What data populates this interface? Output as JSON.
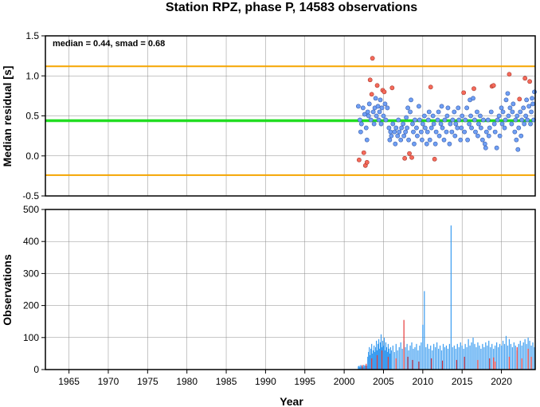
{
  "chart_data": [
    {
      "type": "scatter",
      "title": "Station RPZ, phase P, 14583 observations",
      "xlabel": "",
      "ylabel": "Median residual [s]",
      "stats_text": "median = 0.44, smad = 0.68",
      "xlim": [
        1962,
        2024.3
      ],
      "ylim": [
        -0.5,
        1.5
      ],
      "yticks": [
        -0.5,
        0.0,
        0.5,
        1.0,
        1.5
      ],
      "ytick_labels": [
        "-0.5",
        "0.0",
        "0.5",
        "1.0",
        "1.5"
      ],
      "median_line": 0.44,
      "bounds": [
        -0.24,
        1.12
      ],
      "colors": {
        "median": "#22dd22",
        "bounds": "#f5a500",
        "inlier": "#6f9ff5",
        "outlier": "#f56a5a"
      },
      "outliers": [
        [
          2001.9,
          -0.05
        ],
        [
          2002.5,
          0.04
        ],
        [
          2002.7,
          -0.12
        ],
        [
          2002.9,
          -0.08
        ],
        [
          2003.3,
          0.95
        ],
        [
          2003.6,
          1.22
        ],
        [
          2003.5,
          0.77
        ],
        [
          2004.2,
          0.88
        ],
        [
          2004.9,
          0.82
        ],
        [
          2005.1,
          0.8
        ],
        [
          2006.1,
          0.85
        ],
        [
          2007.7,
          -0.03
        ],
        [
          2008.3,
          0.03
        ],
        [
          2008.6,
          -0.02
        ],
        [
          2011.0,
          0.86
        ],
        [
          2011.5,
          -0.04
        ],
        [
          2015.2,
          0.79
        ],
        [
          2016.5,
          0.84
        ],
        [
          2018.8,
          0.87
        ],
        [
          2019.0,
          0.88
        ],
        [
          2021.0,
          1.02
        ],
        [
          2022.3,
          0.71
        ],
        [
          2023.0,
          0.97
        ],
        [
          2023.6,
          0.93
        ]
      ],
      "inliers": [
        [
          2001.8,
          0.62
        ],
        [
          2002.0,
          0.45
        ],
        [
          2002.1,
          0.3
        ],
        [
          2002.2,
          0.4
        ],
        [
          2002.4,
          0.6
        ],
        [
          2002.6,
          0.52
        ],
        [
          2002.8,
          0.35
        ],
        [
          2002.9,
          0.2
        ],
        [
          2003.0,
          0.55
        ],
        [
          2003.1,
          0.5
        ],
        [
          2003.2,
          0.65
        ],
        [
          2003.4,
          0.45
        ],
        [
          2003.7,
          0.55
        ],
        [
          2003.8,
          0.4
        ],
        [
          2003.9,
          0.6
        ],
        [
          2004.0,
          0.72
        ],
        [
          2004.1,
          0.5
        ],
        [
          2004.3,
          0.62
        ],
        [
          2004.4,
          0.45
        ],
        [
          2004.5,
          0.55
        ],
        [
          2004.6,
          0.7
        ],
        [
          2004.7,
          0.4
        ],
        [
          2004.8,
          0.6
        ],
        [
          2005.0,
          0.5
        ],
        [
          2005.2,
          0.65
        ],
        [
          2005.3,
          0.45
        ],
        [
          2005.5,
          0.6
        ],
        [
          2005.7,
          0.35
        ],
        [
          2005.8,
          0.2
        ],
        [
          2005.9,
          0.3
        ],
        [
          2006.0,
          0.25
        ],
        [
          2006.2,
          0.4
        ],
        [
          2006.4,
          0.3
        ],
        [
          2006.5,
          0.15
        ],
        [
          2006.6,
          0.35
        ],
        [
          2006.8,
          0.25
        ],
        [
          2006.9,
          0.45
        ],
        [
          2007.0,
          0.3
        ],
        [
          2007.2,
          0.2
        ],
        [
          2007.3,
          0.35
        ],
        [
          2007.5,
          0.4
        ],
        [
          2007.6,
          0.25
        ],
        [
          2007.8,
          0.3
        ],
        [
          2007.9,
          0.48
        ],
        [
          2008.0,
          0.35
        ],
        [
          2008.1,
          0.6
        ],
        [
          2008.2,
          0.2
        ],
        [
          2008.4,
          0.55
        ],
        [
          2008.5,
          0.7
        ],
        [
          2008.7,
          0.4
        ],
        [
          2008.8,
          0.3
        ],
        [
          2008.9,
          0.15
        ],
        [
          2009.0,
          0.45
        ],
        [
          2009.2,
          0.35
        ],
        [
          2009.3,
          0.25
        ],
        [
          2009.5,
          0.62
        ],
        [
          2009.6,
          0.45
        ],
        [
          2009.8,
          0.3
        ],
        [
          2009.9,
          0.2
        ],
        [
          2010.0,
          0.4
        ],
        [
          2010.2,
          0.5
        ],
        [
          2010.3,
          0.35
        ],
        [
          2010.5,
          0.15
        ],
        [
          2010.6,
          0.3
        ],
        [
          2010.7,
          0.45
        ],
        [
          2010.8,
          0.55
        ],
        [
          2010.9,
          0.2
        ],
        [
          2011.1,
          0.35
        ],
        [
          2011.3,
          0.5
        ],
        [
          2011.4,
          0.4
        ],
        [
          2011.6,
          0.15
        ],
        [
          2011.7,
          0.3
        ],
        [
          2011.9,
          0.45
        ],
        [
          2012.0,
          0.55
        ],
        [
          2012.1,
          0.25
        ],
        [
          2012.3,
          0.4
        ],
        [
          2012.4,
          0.62
        ],
        [
          2012.5,
          0.35
        ],
        [
          2012.7,
          0.2
        ],
        [
          2012.8,
          0.45
        ],
        [
          2013.0,
          0.3
        ],
        [
          2013.1,
          0.5
        ],
        [
          2013.2,
          0.6
        ],
        [
          2013.4,
          0.15
        ],
        [
          2013.5,
          0.4
        ],
        [
          2013.7,
          0.3
        ],
        [
          2013.8,
          0.45
        ],
        [
          2014.0,
          0.55
        ],
        [
          2014.1,
          0.25
        ],
        [
          2014.2,
          0.4
        ],
        [
          2014.4,
          0.35
        ],
        [
          2014.5,
          0.6
        ],
        [
          2014.6,
          0.45
        ],
        [
          2014.8,
          0.2
        ],
        [
          2014.9,
          0.35
        ],
        [
          2015.0,
          0.5
        ],
        [
          2015.3,
          0.3
        ],
        [
          2015.4,
          0.45
        ],
        [
          2015.6,
          0.6
        ],
        [
          2015.7,
          0.2
        ],
        [
          2015.9,
          0.4
        ],
        [
          2016.0,
          0.7
        ],
        [
          2016.1,
          0.5
        ],
        [
          2016.2,
          0.35
        ],
        [
          2016.4,
          0.72
        ],
        [
          2016.6,
          0.45
        ],
        [
          2016.7,
          0.3
        ],
        [
          2016.9,
          0.55
        ],
        [
          2017.0,
          0.25
        ],
        [
          2017.1,
          0.4
        ],
        [
          2017.3,
          0.5
        ],
        [
          2017.4,
          0.35
        ],
        [
          2017.6,
          0.2
        ],
        [
          2017.7,
          0.45
        ],
        [
          2017.9,
          0.15
        ],
        [
          2018.0,
          0.1
        ],
        [
          2018.1,
          0.3
        ],
        [
          2018.3,
          0.45
        ],
        [
          2018.4,
          0.25
        ],
        [
          2018.5,
          0.35
        ],
        [
          2018.7,
          0.55
        ],
        [
          2019.1,
          0.4
        ],
        [
          2019.2,
          0.3
        ],
        [
          2019.4,
          0.1
        ],
        [
          2019.5,
          0.45
        ],
        [
          2019.7,
          0.5
        ],
        [
          2019.8,
          0.25
        ],
        [
          2020.0,
          0.6
        ],
        [
          2020.1,
          0.4
        ],
        [
          2020.2,
          0.55
        ],
        [
          2020.4,
          0.35
        ],
        [
          2020.5,
          0.45
        ],
        [
          2020.6,
          0.7
        ],
        [
          2020.8,
          0.78
        ],
        [
          2020.9,
          0.5
        ],
        [
          2021.1,
          0.6
        ],
        [
          2021.3,
          0.4
        ],
        [
          2021.4,
          0.55
        ],
        [
          2021.5,
          0.65
        ],
        [
          2021.7,
          0.3
        ],
        [
          2021.8,
          0.45
        ],
        [
          2021.9,
          0.2
        ],
        [
          2022.0,
          0.5
        ],
        [
          2022.1,
          0.08
        ],
        [
          2022.2,
          0.35
        ],
        [
          2022.4,
          0.55
        ],
        [
          2022.5,
          0.25
        ],
        [
          2022.6,
          0.45
        ],
        [
          2022.8,
          0.6
        ],
        [
          2022.9,
          0.4
        ],
        [
          2023.1,
          0.5
        ],
        [
          2023.2,
          0.7
        ],
        [
          2023.3,
          0.45
        ],
        [
          2023.5,
          0.62
        ],
        [
          2023.7,
          0.4
        ],
        [
          2023.8,
          0.55
        ],
        [
          2023.9,
          0.72
        ],
        [
          2024.0,
          0.65
        ],
        [
          2024.1,
          0.45
        ],
        [
          2024.2,
          0.8
        ]
      ]
    },
    {
      "type": "bar",
      "xlabel": "Year",
      "ylabel": "Observations",
      "xlim": [
        1962,
        2024.3
      ],
      "ylim": [
        0,
        500
      ],
      "xticks": [
        1965,
        1970,
        1975,
        1980,
        1985,
        1990,
        1995,
        2000,
        2005,
        2010,
        2015,
        2020
      ],
      "xtick_labels": [
        "1965",
        "1970",
        "1975",
        "1980",
        "1985",
        "1990",
        "1995",
        "2000",
        "2005",
        "2010",
        "2015",
        "2020"
      ],
      "yticks": [
        0,
        100,
        200,
        300,
        400,
        500
      ],
      "ytick_labels": [
        "0",
        "100",
        "200",
        "300",
        "400",
        "500"
      ],
      "colors": {
        "normal": "#3a9cf0",
        "flagged": "#e83a3a"
      },
      "bars": [
        [
          2001.8,
          10
        ],
        [
          2001.9,
          12
        ],
        [
          2002.0,
          8
        ],
        [
          2002.1,
          14
        ],
        [
          2002.2,
          10
        ],
        [
          2002.3,
          12
        ],
        [
          2002.4,
          9
        ],
        [
          2002.5,
          15
        ],
        [
          2002.6,
          11
        ],
        [
          2002.7,
          13
        ],
        [
          2002.8,
          10
        ],
        [
          2002.9,
          12
        ],
        [
          2003.0,
          40
        ],
        [
          2003.1,
          55
        ],
        [
          2003.2,
          70
        ],
        [
          2003.3,
          45
        ],
        [
          2003.4,
          65
        ],
        [
          2003.5,
          80
        ],
        [
          2003.6,
          50
        ],
        [
          2003.7,
          60
        ],
        [
          2003.8,
          75
        ],
        [
          2003.9,
          55
        ],
        [
          2004.0,
          70
        ],
        [
          2004.1,
          90
        ],
        [
          2004.2,
          60
        ],
        [
          2004.3,
          80
        ],
        [
          2004.4,
          95
        ],
        [
          2004.5,
          65
        ],
        [
          2004.6,
          85
        ],
        [
          2004.7,
          110
        ],
        [
          2004.8,
          70
        ],
        [
          2004.9,
          90
        ],
        [
          2005.0,
          75
        ],
        [
          2005.1,
          100
        ],
        [
          2005.2,
          60
        ],
        [
          2005.3,
          85
        ],
        [
          2005.4,
          70
        ],
        [
          2005.5,
          55
        ],
        [
          2005.6,
          80
        ],
        [
          2005.7,
          65
        ],
        [
          2005.8,
          50
        ],
        [
          2005.9,
          70
        ],
        [
          2006.0,
          60
        ],
        [
          2006.2,
          75
        ],
        [
          2006.4,
          55
        ],
        [
          2006.6,
          80
        ],
        [
          2006.8,
          60
        ],
        [
          2007.0,
          70
        ],
        [
          2007.2,
          85
        ],
        [
          2007.4,
          65
        ],
        [
          2007.6,
          90
        ],
        [
          2007.8,
          70
        ],
        [
          2008.0,
          80
        ],
        [
          2008.2,
          60
        ],
        [
          2008.4,
          75
        ],
        [
          2008.6,
          85
        ],
        [
          2008.8,
          65
        ],
        [
          2009.0,
          70
        ],
        [
          2009.2,
          80
        ],
        [
          2009.4,
          60
        ],
        [
          2009.6,
          75
        ],
        [
          2009.8,
          85
        ],
        [
          2010.0,
          140
        ],
        [
          2010.2,
          245
        ],
        [
          2010.4,
          70
        ],
        [
          2010.6,
          80
        ],
        [
          2010.8,
          65
        ],
        [
          2011.0,
          75
        ],
        [
          2011.2,
          60
        ],
        [
          2011.4,
          80
        ],
        [
          2011.6,
          70
        ],
        [
          2011.8,
          85
        ],
        [
          2012.0,
          65
        ],
        [
          2012.2,
          75
        ],
        [
          2012.4,
          60
        ],
        [
          2012.6,
          80
        ],
        [
          2012.8,
          70
        ],
        [
          2013.0,
          75
        ],
        [
          2013.2,
          65
        ],
        [
          2013.4,
          80
        ],
        [
          2013.6,
          450
        ],
        [
          2013.8,
          70
        ],
        [
          2014.0,
          75
        ],
        [
          2014.2,
          65
        ],
        [
          2014.4,
          80
        ],
        [
          2014.6,
          70
        ],
        [
          2014.8,
          85
        ],
        [
          2015.0,
          75
        ],
        [
          2015.2,
          65
        ],
        [
          2015.4,
          80
        ],
        [
          2015.6,
          70
        ],
        [
          2015.8,
          95
        ],
        [
          2016.0,
          75
        ],
        [
          2016.2,
          85
        ],
        [
          2016.4,
          100
        ],
        [
          2016.6,
          80
        ],
        [
          2016.8,
          70
        ],
        [
          2017.0,
          85
        ],
        [
          2017.2,
          75
        ],
        [
          2017.4,
          65
        ],
        [
          2017.6,
          80
        ],
        [
          2017.8,
          70
        ],
        [
          2018.0,
          85
        ],
        [
          2018.2,
          75
        ],
        [
          2018.4,
          90
        ],
        [
          2018.6,
          70
        ],
        [
          2018.8,
          80
        ],
        [
          2019.0,
          65
        ],
        [
          2019.2,
          75
        ],
        [
          2019.4,
          85
        ],
        [
          2019.6,
          70
        ],
        [
          2019.8,
          80
        ],
        [
          2020.0,
          75
        ],
        [
          2020.2,
          90
        ],
        [
          2020.4,
          80
        ],
        [
          2020.6,
          105
        ],
        [
          2020.8,
          75
        ],
        [
          2021.0,
          95
        ],
        [
          2021.2,
          80
        ],
        [
          2021.4,
          70
        ],
        [
          2021.6,
          85
        ],
        [
          2021.8,
          75
        ],
        [
          2022.0,
          60
        ],
        [
          2022.2,
          80
        ],
        [
          2022.4,
          90
        ],
        [
          2022.6,
          75
        ],
        [
          2022.8,
          85
        ],
        [
          2023.0,
          95
        ],
        [
          2023.2,
          80
        ],
        [
          2023.4,
          100
        ],
        [
          2023.6,
          90
        ],
        [
          2023.8,
          75
        ],
        [
          2024.0,
          85
        ],
        [
          2024.2,
          70
        ]
      ],
      "flagged_bars": [
        [
          2002.3,
          14
        ],
        [
          2002.8,
          18
        ],
        [
          2003.5,
          35
        ],
        [
          2004.2,
          45
        ],
        [
          2004.8,
          60
        ],
        [
          2005.6,
          40
        ],
        [
          2006.6,
          35
        ],
        [
          2007.6,
          155
        ],
        [
          2008.1,
          40
        ],
        [
          2008.7,
          30
        ],
        [
          2009.5,
          25
        ],
        [
          2011.1,
          35
        ],
        [
          2012.5,
          28
        ],
        [
          2014.3,
          30
        ],
        [
          2015.3,
          40
        ],
        [
          2017.0,
          30
        ],
        [
          2018.5,
          35
        ],
        [
          2019.0,
          38
        ],
        [
          2019.2,
          25
        ],
        [
          2021.0,
          40
        ],
        [
          2022.0,
          70
        ],
        [
          2022.6,
          35
        ],
        [
          2023.4,
          65
        ],
        [
          2023.8,
          40
        ]
      ]
    }
  ]
}
